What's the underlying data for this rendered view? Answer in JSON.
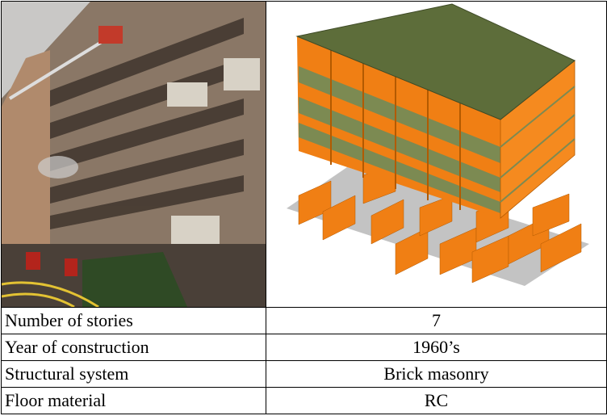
{
  "table": {
    "rows": [
      [
        "Number of stories",
        "7"
      ],
      [
        "Year of construction",
        "1960’s"
      ],
      [
        "Structural system",
        "Brick masonry"
      ],
      [
        "Floor material",
        "RC"
      ]
    ]
  }
}
